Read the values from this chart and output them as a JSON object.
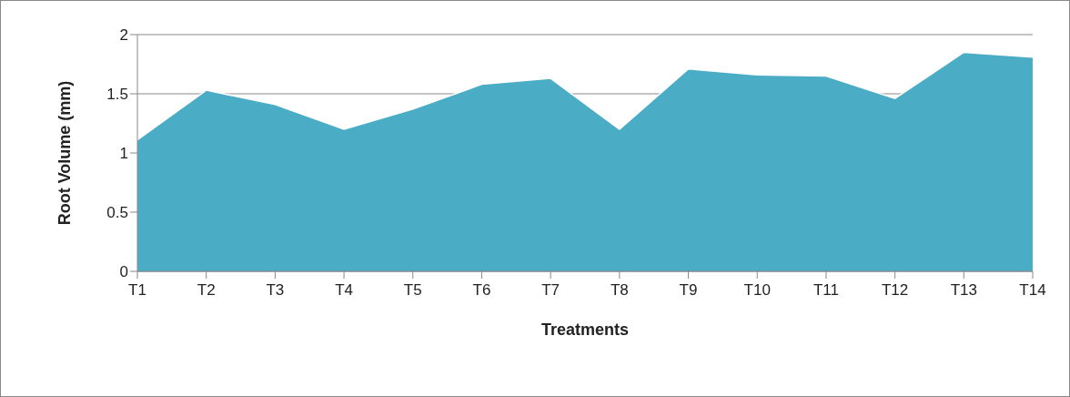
{
  "chart_data": {
    "type": "area",
    "xlabel": "Treatments",
    "ylabel": "Root Volume (mm)",
    "categories": [
      "T1",
      "T2",
      "T3",
      "T4",
      "T5",
      "T6",
      "T7",
      "T8",
      "T9",
      "T10",
      "T11",
      "T12",
      "T13",
      "T14"
    ],
    "series": [
      {
        "color": "#4bacc6",
        "values": [
          1.11,
          1.53,
          1.41,
          1.2,
          1.37,
          1.58,
          1.63,
          1.2,
          1.71,
          1.66,
          1.65,
          1.46,
          1.85,
          1.81
        ]
      }
    ],
    "ylim": [
      0,
      2
    ],
    "yticks": [
      0,
      0.5,
      1,
      1.5,
      2
    ],
    "grid": "y",
    "legend": false
  }
}
